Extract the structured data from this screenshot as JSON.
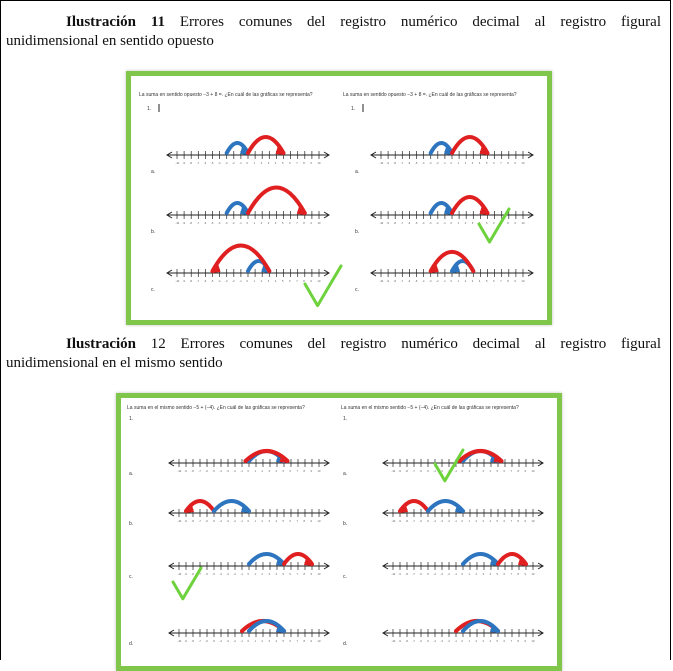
{
  "caption1": {
    "label": "Ilustración 11",
    "line1_rest": " Errores comunes del registro numérico decimal al registro figural",
    "line2": "unidimensional en sentido opuesto"
  },
  "caption2": {
    "label": "Ilustración",
    "line1_rest": " 12 Errores comunes del registro numérico decimal al registro figural",
    "line2": "unidimensional en el mismo sentido"
  },
  "figure1": {
    "question": "La suma en sentido opuesto −3 + 8 =. ¿En cuál de las gráficas se representa?",
    "item_number": "1.",
    "options": [
      "a.",
      "b.",
      "c."
    ]
  },
  "figure2": {
    "question": "La suma en el mismo sentido −5 + (−4). ¿En cuál de las gráficas se representa?",
    "item_number": "1.",
    "options": [
      "a.",
      "b.",
      "c.",
      "d."
    ]
  },
  "number_line": {
    "min": -10,
    "max": 10
  },
  "colors": {
    "frame_green": "#7fc64a",
    "arc_red": "#e02020",
    "arc_blue": "#2e75c0",
    "check_green": "#6dd23c"
  },
  "figure_arcs": {
    "f1": [
      [
        {
          "from": -3,
          "to": 0,
          "c": "blue"
        },
        {
          "from": 0,
          "to": 5,
          "c": "red"
        }
      ],
      [
        {
          "from": -3,
          "to": 0,
          "c": "blue"
        },
        {
          "from": 0,
          "to": 8,
          "c": "red"
        }
      ],
      [
        {
          "from": 0,
          "to": 3,
          "c": "blue"
        },
        {
          "from": 3,
          "to": -5,
          "c": "red"
        }
      ]
    ],
    "f1r": [
      [
        {
          "from": -3,
          "to": 0,
          "c": "blue"
        },
        {
          "from": 0,
          "to": 5,
          "c": "red"
        }
      ],
      [
        {
          "from": -3,
          "to": 0,
          "c": "blue"
        },
        {
          "from": 0,
          "to": 5,
          "c": "red"
        }
      ],
      [
        {
          "from": 3,
          "to": 0,
          "c": "blue"
        },
        {
          "from": 3,
          "to": -3,
          "c": "red"
        }
      ]
    ],
    "f2": [
      [
        {
          "from": 0,
          "to": 5,
          "c": "blue"
        },
        {
          "from": -0.5,
          "to": 5.5,
          "c": "red"
        }
      ],
      [
        {
          "from": -5,
          "to": -9,
          "c": "red"
        },
        {
          "from": -5,
          "to": 0,
          "c": "blue"
        }
      ],
      [
        {
          "from": 0,
          "to": 5,
          "c": "blue"
        },
        {
          "from": 5,
          "to": 9,
          "c": "red"
        }
      ],
      [
        {
          "from": -1,
          "to": 5,
          "c": "red"
        },
        {
          "from": 0,
          "to": 5,
          "c": "blue"
        }
      ]
    ],
    "f2r": [
      [
        {
          "from": 0,
          "to": 5,
          "c": "blue"
        },
        {
          "from": -0.5,
          "to": 5.5,
          "c": "red"
        }
      ],
      [
        {
          "from": -5,
          "to": -9,
          "c": "red"
        },
        {
          "from": -5,
          "to": 0,
          "c": "blue"
        }
      ],
      [
        {
          "from": 0,
          "to": 5,
          "c": "blue"
        },
        {
          "from": 5,
          "to": 9,
          "c": "red"
        }
      ],
      [
        {
          "from": -1,
          "to": 5,
          "c": "red"
        },
        {
          "from": 0,
          "to": 5,
          "c": "blue"
        }
      ]
    ]
  }
}
